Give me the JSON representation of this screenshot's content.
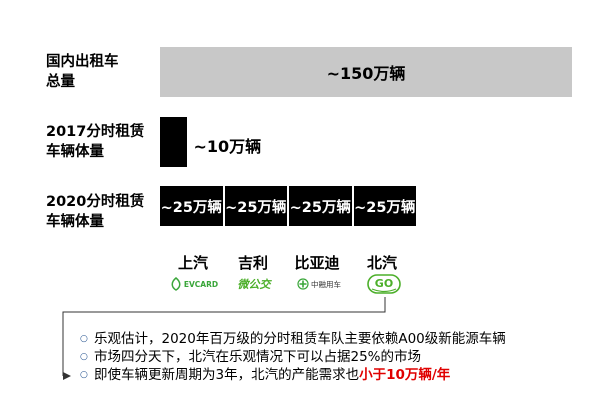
{
  "chart_data": {
    "type": "bar",
    "categories": [
      "国内出租车总量",
      "2017分时租赁车辆体量",
      "2020分时租赁车辆体量"
    ],
    "category_lines": [
      [
        "国内出租车",
        "总量"
      ],
      [
        "2017分时租赁",
        "车辆体量"
      ],
      [
        "2020分时租赁",
        "车辆体量"
      ]
    ],
    "values": [
      150,
      10,
      100
    ],
    "value_labels": [
      "~150万辆",
      "~10万辆",
      ""
    ],
    "unit": "万辆",
    "segments_2020": [
      {
        "brand": "上汽",
        "value": 25,
        "label": "~25万辆",
        "logo": "EVCARD"
      },
      {
        "brand": "吉利",
        "value": 25,
        "label": "~25万辆",
        "logo": "微公交"
      },
      {
        "brand": "比亚迪",
        "value": 25,
        "label": "~25万辆",
        "logo": "中融用车"
      },
      {
        "brand": "北汽",
        "value": 25,
        "label": "~25万辆",
        "logo": "GO"
      }
    ],
    "colors": {
      "total_bar": "#c8c8c8",
      "share_bar": "#000000"
    }
  },
  "notes": [
    {
      "text": "乐观估计，2020年百万级的分时租赁车队主要依赖A00级新能源车辆"
    },
    {
      "text": "市场四分天下，北汽在乐观情况下可以占据25%的市场"
    },
    {
      "text": "即使车辆更新周期为3年，北汽的产能需求也",
      "highlight": "小于10万辆/年"
    }
  ]
}
